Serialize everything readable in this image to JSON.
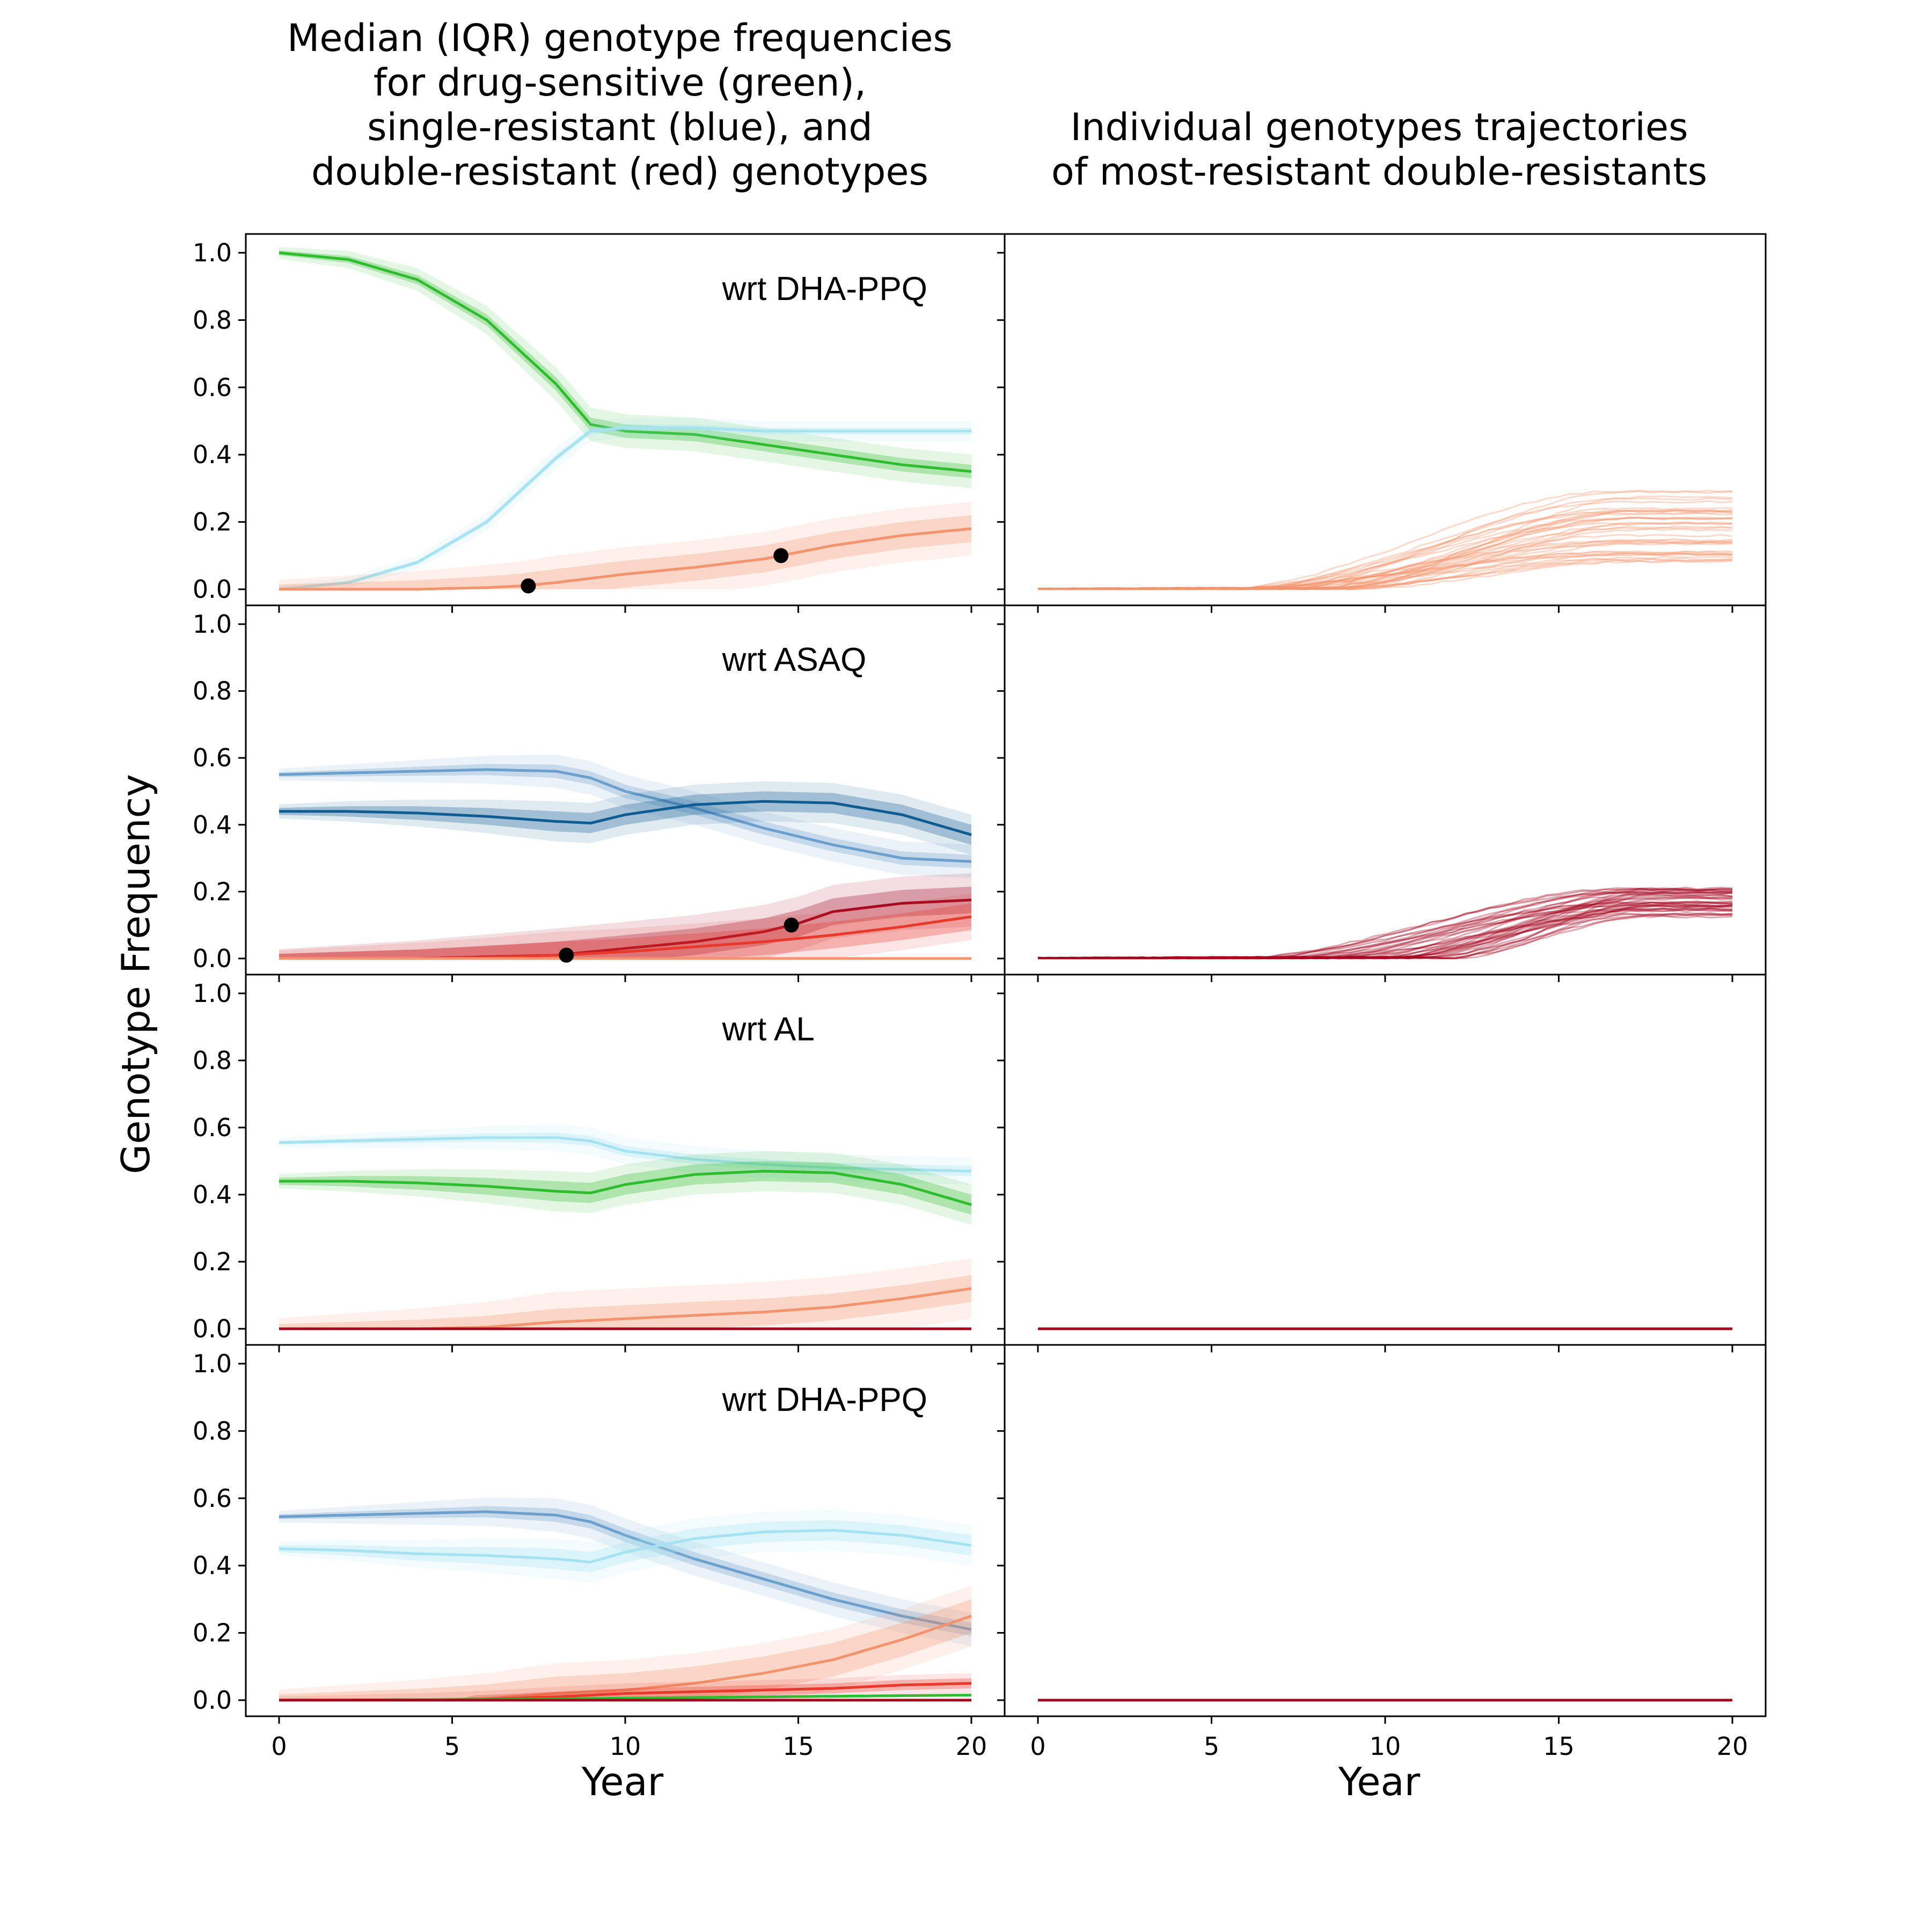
{
  "figure": {
    "ylabel": "Genotype Frequency",
    "xlabel": "Year",
    "col_titles": [
      [
        "Median (IQR) genotype frequencies",
        "for drug-sensitive (green),",
        "single-resistant (blue), and",
        "double-resistant (red) genotypes"
      ],
      [
        "Individual genotypes trajectories",
        "of most-resistant double-resistants"
      ]
    ],
    "x_ticks": [
      "0",
      "5",
      "10",
      "15",
      "20"
    ],
    "y_ticks": [
      "0.0",
      "0.2",
      "0.4",
      "0.6",
      "0.8",
      "1.0"
    ]
  },
  "colors": {
    "green": "#2fbd2f",
    "light_blue": "#a6e3f2",
    "steel_blue": "#6b9fcc",
    "dark_blue": "#0f5c92",
    "salmon": "#f4946e",
    "red": "#e8392c",
    "dark_red": "#a3071f",
    "marker": "#000000"
  },
  "chart_data": [
    {
      "type": "line",
      "panel": "median-iqr",
      "row": 0,
      "annotation": "wrt DHA-PPQ",
      "xlim": [
        0,
        20
      ],
      "ylim": [
        0,
        1
      ],
      "series": [
        {
          "color": "green",
          "x": [
            0,
            2,
            4,
            6,
            8,
            9,
            10,
            12,
            14,
            16,
            18,
            20
          ],
          "y": [
            1.0,
            0.98,
            0.92,
            0.8,
            0.61,
            0.49,
            0.47,
            0.46,
            0.43,
            0.4,
            0.37,
            0.35
          ],
          "iqr": 0.02,
          "outer": 0.05
        },
        {
          "color": "light_blue",
          "x": [
            0,
            2,
            4,
            6,
            8,
            9,
            10,
            12,
            14,
            16,
            18,
            20
          ],
          "y": [
            0.0,
            0.02,
            0.08,
            0.2,
            0.39,
            0.47,
            0.48,
            0.48,
            0.47,
            0.47,
            0.47,
            0.47
          ],
          "iqr": 0.01,
          "outer": 0.03
        },
        {
          "color": "salmon",
          "x": [
            0,
            4,
            6,
            7,
            8,
            10,
            12,
            14,
            16,
            18,
            20
          ],
          "y": [
            0.0,
            0.0,
            0.005,
            0.01,
            0.02,
            0.045,
            0.065,
            0.09,
            0.13,
            0.16,
            0.18
          ],
          "iqr": 0.04,
          "outer": 0.08
        }
      ],
      "markers": [
        {
          "x": 7.2,
          "y": 0.01
        },
        {
          "x": 14.5,
          "y": 0.1
        }
      ]
    },
    {
      "type": "line",
      "panel": "median-iqr",
      "row": 1,
      "annotation": "wrt ASAQ",
      "xlim": [
        0,
        20
      ],
      "ylim": [
        0,
        1
      ],
      "series": [
        {
          "color": "steel_blue",
          "x": [
            0,
            2,
            4,
            6,
            8,
            9,
            10,
            12,
            14,
            16,
            18,
            20
          ],
          "y": [
            0.55,
            0.555,
            0.56,
            0.565,
            0.56,
            0.54,
            0.5,
            0.45,
            0.39,
            0.34,
            0.3,
            0.29
          ],
          "iqr": 0.02,
          "outer": 0.05
        },
        {
          "color": "dark_blue",
          "x": [
            0,
            2,
            4,
            6,
            8,
            9,
            10,
            12,
            14,
            16,
            18,
            20
          ],
          "y": [
            0.44,
            0.44,
            0.435,
            0.425,
            0.41,
            0.405,
            0.43,
            0.46,
            0.47,
            0.465,
            0.43,
            0.37
          ],
          "iqr": 0.03,
          "outer": 0.06
        },
        {
          "color": "dark_red",
          "x": [
            0,
            4,
            6,
            8,
            10,
            12,
            14,
            15,
            16,
            18,
            20
          ],
          "y": [
            0.0,
            0.0,
            0.005,
            0.01,
            0.03,
            0.05,
            0.08,
            0.105,
            0.14,
            0.165,
            0.175
          ],
          "iqr": 0.04,
          "outer": 0.08
        },
        {
          "color": "red",
          "x": [
            0,
            4,
            6,
            8,
            10,
            12,
            14,
            16,
            18,
            20
          ],
          "y": [
            0.0,
            0.0,
            0.003,
            0.01,
            0.02,
            0.035,
            0.05,
            0.07,
            0.095,
            0.125
          ],
          "iqr": 0.04,
          "outer": 0.07
        },
        {
          "color": "salmon",
          "x": [
            0,
            20
          ],
          "y": [
            0.0,
            0.0
          ],
          "iqr": 0.0,
          "outer": 0.0
        }
      ],
      "markers": [
        {
          "x": 8.3,
          "y": 0.01
        },
        {
          "x": 14.8,
          "y": 0.1
        }
      ]
    },
    {
      "type": "line",
      "panel": "median-iqr",
      "row": 2,
      "annotation": "wrt AL",
      "xlim": [
        0,
        20
      ],
      "ylim": [
        0,
        1
      ],
      "series": [
        {
          "color": "light_blue",
          "x": [
            0,
            2,
            4,
            6,
            8,
            9,
            10,
            12,
            14,
            16,
            18,
            20
          ],
          "y": [
            0.555,
            0.56,
            0.565,
            0.57,
            0.57,
            0.56,
            0.53,
            0.505,
            0.49,
            0.48,
            0.475,
            0.47
          ],
          "iqr": 0.015,
          "outer": 0.04
        },
        {
          "color": "green",
          "x": [
            0,
            2,
            4,
            6,
            8,
            9,
            10,
            12,
            14,
            16,
            18,
            20
          ],
          "y": [
            0.44,
            0.44,
            0.435,
            0.425,
            0.41,
            0.405,
            0.43,
            0.46,
            0.47,
            0.465,
            0.43,
            0.37
          ],
          "iqr": 0.03,
          "outer": 0.06
        },
        {
          "color": "salmon",
          "x": [
            0,
            4,
            6,
            8,
            10,
            12,
            14,
            16,
            18,
            20
          ],
          "y": [
            0.0,
            0.0,
            0.005,
            0.02,
            0.03,
            0.04,
            0.05,
            0.065,
            0.09,
            0.12
          ],
          "iqr": 0.04,
          "outer": 0.09
        },
        {
          "color": "dark_red",
          "x": [
            0,
            20
          ],
          "y": [
            0.0,
            0.0
          ],
          "iqr": 0.0,
          "outer": 0.0
        }
      ],
      "markers": []
    },
    {
      "type": "line",
      "panel": "median-iqr",
      "row": 3,
      "annotation": "wrt DHA-PPQ",
      "xlim": [
        0,
        20
      ],
      "ylim": [
        0,
        1
      ],
      "series": [
        {
          "color": "steel_blue",
          "x": [
            0,
            2,
            4,
            6,
            8,
            9,
            10,
            12,
            14,
            16,
            18,
            20
          ],
          "y": [
            0.545,
            0.55,
            0.555,
            0.56,
            0.55,
            0.53,
            0.49,
            0.42,
            0.36,
            0.3,
            0.25,
            0.21
          ],
          "iqr": 0.02,
          "outer": 0.05
        },
        {
          "color": "light_blue",
          "x": [
            0,
            2,
            4,
            6,
            8,
            9,
            10,
            12,
            14,
            16,
            18,
            20
          ],
          "y": [
            0.45,
            0.445,
            0.435,
            0.43,
            0.42,
            0.41,
            0.44,
            0.48,
            0.5,
            0.505,
            0.49,
            0.46
          ],
          "iqr": 0.03,
          "outer": 0.06
        },
        {
          "color": "salmon",
          "x": [
            0,
            4,
            6,
            8,
            10,
            12,
            14,
            16,
            18,
            20
          ],
          "y": [
            0.0,
            0.0,
            0.005,
            0.02,
            0.03,
            0.05,
            0.08,
            0.12,
            0.18,
            0.25
          ],
          "iqr": 0.05,
          "outer": 0.09
        },
        {
          "color": "red",
          "x": [
            0,
            4,
            6,
            8,
            10,
            12,
            14,
            16,
            18,
            20
          ],
          "y": [
            0.0,
            0.0,
            0.003,
            0.01,
            0.02,
            0.025,
            0.03,
            0.035,
            0.045,
            0.05
          ],
          "iqr": 0.015,
          "outer": 0.03
        },
        {
          "color": "green",
          "x": [
            0,
            6,
            10,
            14,
            20
          ],
          "y": [
            0.0,
            0.002,
            0.006,
            0.01,
            0.015
          ],
          "iqr": 0.0,
          "outer": 0.0
        },
        {
          "color": "dark_red",
          "x": [
            0,
            20
          ],
          "y": [
            0.0,
            0.0
          ],
          "iqr": 0.0,
          "outer": 0.0
        }
      ],
      "markers": []
    },
    {
      "type": "line",
      "panel": "individual-trajectories",
      "row": 0,
      "xlim": [
        0,
        20
      ],
      "ylim": [
        0,
        1
      ],
      "color": "salmon",
      "trajectories": {
        "count": 40,
        "onset_range": [
          5,
          9
        ],
        "final_range": [
          0.08,
          0.3
        ]
      }
    },
    {
      "type": "line",
      "panel": "individual-trajectories",
      "row": 1,
      "xlim": [
        0,
        20
      ],
      "ylim": [
        0,
        1
      ],
      "color": "dark_red",
      "trajectories": {
        "count": 40,
        "onset_range": [
          5,
          12
        ],
        "final_range": [
          0.12,
          0.21
        ]
      }
    },
    {
      "type": "line",
      "panel": "individual-trajectories",
      "row": 2,
      "xlim": [
        0,
        20
      ],
      "ylim": [
        0,
        1
      ],
      "color": "dark_red",
      "series": [
        {
          "x": [
            0,
            20
          ],
          "y": [
            0,
            0
          ]
        }
      ]
    },
    {
      "type": "line",
      "panel": "individual-trajectories",
      "row": 3,
      "xlim": [
        0,
        20
      ],
      "ylim": [
        0,
        1
      ],
      "color": "dark_red",
      "series": [
        {
          "x": [
            0,
            20
          ],
          "y": [
            0,
            0
          ]
        }
      ]
    }
  ]
}
